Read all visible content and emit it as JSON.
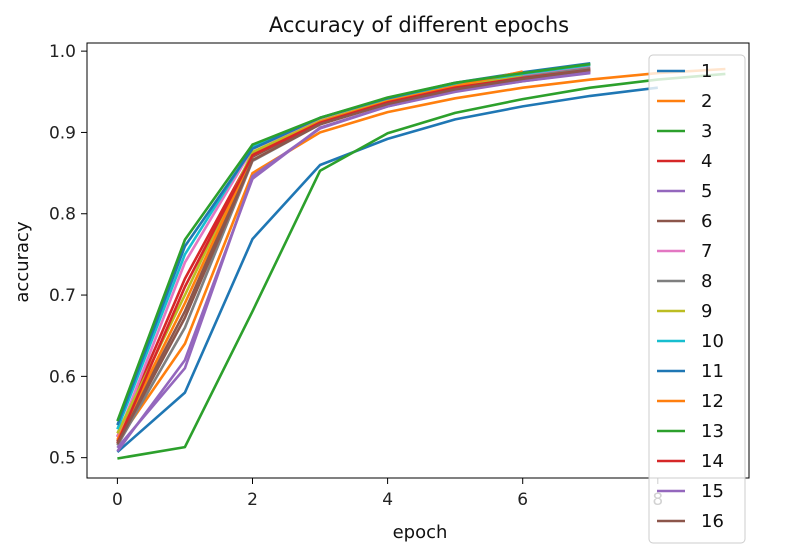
{
  "chart_data": {
    "type": "line",
    "title": "Accuracy of different epochs",
    "xlabel": "epoch",
    "ylabel": "accuracy",
    "xlim": [
      -0.45,
      9.35
    ],
    "ylim": [
      0.475,
      1.01
    ],
    "xticks": [
      0,
      2,
      4,
      6,
      8
    ],
    "yticks": [
      0.5,
      0.6,
      0.7,
      0.8,
      0.9,
      1.0
    ],
    "ytick_labels": [
      "0.5",
      "0.6",
      "0.7",
      "0.8",
      "0.9",
      "1.0"
    ],
    "grid": false,
    "legend_position": "right",
    "series": [
      {
        "name": "1",
        "color": "#1f77b4",
        "x": [
          0,
          1,
          2,
          3,
          4,
          5,
          6,
          7,
          8
        ],
        "y": [
          0.507,
          0.58,
          0.769,
          0.86,
          0.892,
          0.916,
          0.932,
          0.945,
          0.955
        ]
      },
      {
        "name": "2",
        "color": "#ff7f0e",
        "x": [
          0,
          1,
          2,
          3,
          4,
          5,
          6,
          7,
          8,
          9
        ],
        "y": [
          0.52,
          0.64,
          0.85,
          0.9,
          0.925,
          0.942,
          0.955,
          0.965,
          0.973,
          0.978
        ]
      },
      {
        "name": "3",
        "color": "#2ca02c",
        "x": [
          0,
          1,
          2,
          3,
          4,
          5,
          6,
          7,
          8,
          9
        ],
        "y": [
          0.499,
          0.513,
          0.68,
          0.853,
          0.899,
          0.924,
          0.941,
          0.955,
          0.965,
          0.972
        ]
      },
      {
        "name": "4",
        "color": "#d62728",
        "x": [
          0,
          1,
          2,
          3,
          4,
          5,
          6,
          7
        ],
        "y": [
          0.526,
          0.72,
          0.873,
          0.914,
          0.938,
          0.954,
          0.965,
          0.975
        ]
      },
      {
        "name": "5",
        "color": "#9467bd",
        "x": [
          0,
          1,
          2,
          3,
          4,
          5,
          6,
          7
        ],
        "y": [
          0.508,
          0.62,
          0.843,
          0.906,
          0.932,
          0.95,
          0.963,
          0.973
        ]
      },
      {
        "name": "6",
        "color": "#8c564b",
        "x": [
          0,
          1,
          2,
          3,
          4,
          5,
          6,
          7
        ],
        "y": [
          0.52,
          0.68,
          0.87,
          0.912,
          0.935,
          0.952,
          0.964,
          0.976
        ]
      },
      {
        "name": "7",
        "color": "#e377c2",
        "x": [
          0,
          1,
          2,
          3,
          4,
          5,
          6,
          7
        ],
        "y": [
          0.525,
          0.74,
          0.88,
          0.916,
          0.94,
          0.957,
          0.97,
          0.98
        ]
      },
      {
        "name": "8",
        "color": "#7f7f7f",
        "x": [
          0,
          1,
          2,
          3,
          4,
          5,
          6,
          7
        ],
        "y": [
          0.515,
          0.66,
          0.865,
          0.91,
          0.936,
          0.954,
          0.968,
          0.979
        ]
      },
      {
        "name": "9",
        "color": "#bcbd22",
        "x": [
          0,
          1,
          2,
          3,
          4,
          5,
          6
        ],
        "y": [
          0.53,
          0.7,
          0.876,
          0.914,
          0.939,
          0.957,
          0.971
        ]
      },
      {
        "name": "10",
        "color": "#17becf",
        "x": [
          0,
          1,
          2,
          3,
          4,
          5,
          6,
          7
        ],
        "y": [
          0.535,
          0.75,
          0.882,
          0.918,
          0.942,
          0.96,
          0.972,
          0.983
        ]
      },
      {
        "name": "11",
        "color": "#1f77b4",
        "x": [
          0,
          1,
          2,
          3,
          4,
          5,
          6,
          7
        ],
        "y": [
          0.54,
          0.76,
          0.88,
          0.918,
          0.942,
          0.961,
          0.974,
          0.985
        ]
      },
      {
        "name": "12",
        "color": "#ff7f0e",
        "x": [
          0,
          1,
          2,
          3,
          4,
          5,
          6
        ],
        "y": [
          0.522,
          0.69,
          0.872,
          0.913,
          0.938,
          0.957,
          0.975
        ]
      },
      {
        "name": "13",
        "color": "#2ca02c",
        "x": [
          0,
          1,
          2,
          3,
          4,
          5,
          6,
          7
        ],
        "y": [
          0.545,
          0.768,
          0.885,
          0.918,
          0.943,
          0.961,
          0.973,
          0.984
        ]
      },
      {
        "name": "14",
        "color": "#d62728",
        "x": [
          0,
          1,
          2,
          3,
          4,
          5,
          6,
          7
        ],
        "y": [
          0.518,
          0.71,
          0.872,
          0.912,
          0.937,
          0.955,
          0.967,
          0.977
        ]
      },
      {
        "name": "15",
        "color": "#9467bd",
        "x": [
          0,
          1,
          2,
          3,
          4,
          5,
          6,
          7
        ],
        "y": [
          0.512,
          0.61,
          0.846,
          0.905,
          0.932,
          0.951,
          0.963,
          0.974
        ]
      },
      {
        "name": "16",
        "color": "#8c564b",
        "x": [
          0,
          1,
          2,
          3,
          4,
          5,
          6,
          7
        ],
        "y": [
          0.517,
          0.672,
          0.866,
          0.91,
          0.935,
          0.953,
          0.966,
          0.977
        ]
      }
    ]
  }
}
